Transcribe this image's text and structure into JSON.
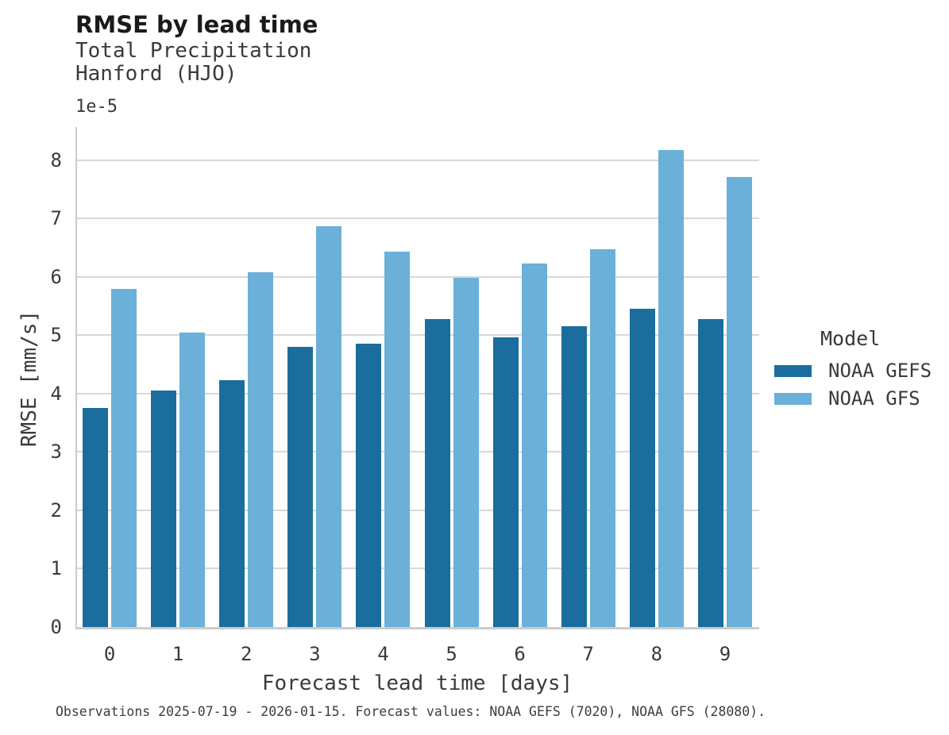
{
  "header": {
    "title": "RMSE by lead time",
    "subtitle_line1": "Total Precipitation",
    "subtitle_line2": "Hanford (HJO)"
  },
  "chart_data": {
    "type": "bar",
    "title": "RMSE by lead time",
    "subtitle": "Total Precipitation, Hanford (HJO)",
    "xlabel": "Forecast lead time [days]",
    "ylabel": "RMSE [mm/s]",
    "y_offset_label": "1e-5",
    "value_scale": "1e-5",
    "categories": [
      "0",
      "1",
      "2",
      "3",
      "4",
      "5",
      "6",
      "7",
      "8",
      "9"
    ],
    "series": [
      {
        "name": "NOAA GEFS",
        "color": "#1a6d9d",
        "values": [
          3.75,
          4.05,
          4.23,
          4.8,
          4.85,
          5.28,
          4.97,
          5.15,
          5.46,
          5.28
        ]
      },
      {
        "name": "NOAA GFS",
        "color": "#6bb0d8",
        "values": [
          5.79,
          5.05,
          6.08,
          6.87,
          6.43,
          5.98,
          6.23,
          6.47,
          8.17,
          7.71
        ]
      }
    ],
    "ylim": [
      0,
      8.57
    ],
    "yticks": [
      0,
      1,
      2,
      3,
      4,
      5,
      6,
      7,
      8
    ],
    "grid": true,
    "legend": {
      "title": "Model",
      "position": "right"
    }
  },
  "footer": {
    "note": "Observations 2025-07-19 - 2026-01-15. Forecast values: NOAA GEFS (7020), NOAA GFS (28080)."
  }
}
